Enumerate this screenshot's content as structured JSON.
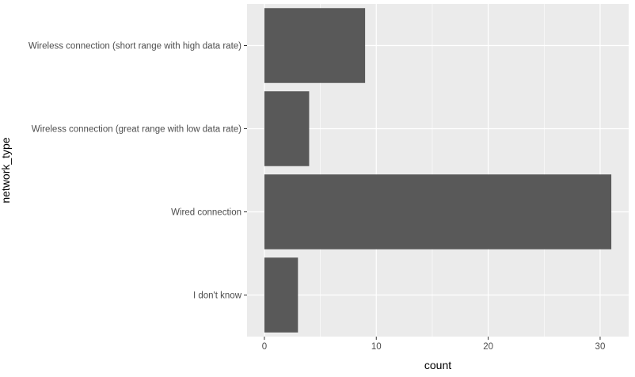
{
  "chart_data": {
    "type": "bar",
    "orientation": "horizontal",
    "categories": [
      "Wireless connection (short range with high data rate)",
      "Wireless connection (great range with low data rate)",
      "Wired connection",
      "I don't know"
    ],
    "values": [
      9,
      4,
      31,
      3
    ],
    "xlabel": "count",
    "ylabel": "network_type",
    "xlim": [
      -1.55,
      32.55
    ],
    "xticks": [
      0,
      10,
      20,
      30
    ],
    "grid": true,
    "colors": {
      "panel_background": "#EBEBEB",
      "grid": "#FFFFFF",
      "bar": "#595959",
      "tick_text": "#4D4D4D",
      "axis_title": "#000000"
    }
  }
}
